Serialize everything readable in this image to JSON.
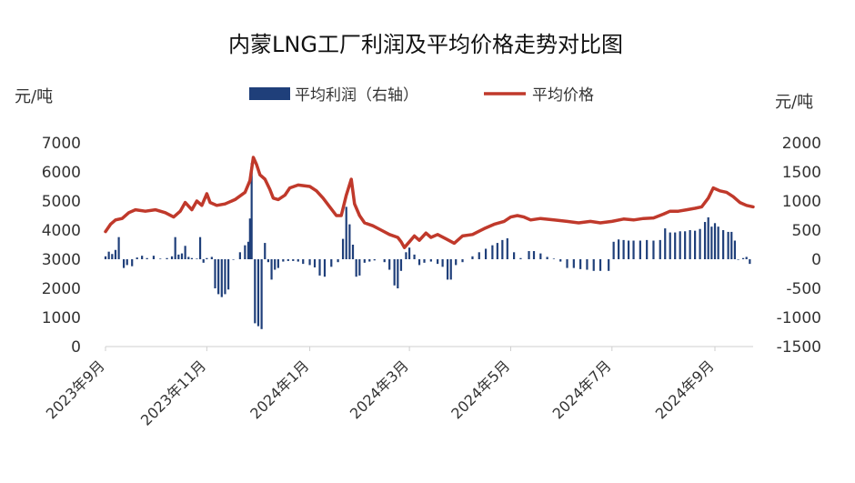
{
  "chart_data": {
    "type": "bar+line",
    "title": "内蒙LNG工厂利润及平均价格走势对比图",
    "y_left_unit": "元/吨",
    "y_right_unit": "元/吨",
    "y_left_lim": [
      0,
      7000
    ],
    "y_right_lim": [
      -1500,
      2000
    ],
    "y_left_ticks": [
      "7000",
      "6000",
      "5000",
      "4000",
      "3000",
      "2000",
      "1000",
      "0"
    ],
    "y_right_ticks": [
      "2000",
      "1500",
      "1000",
      "500",
      "0",
      "-500",
      "-1000",
      "-1500"
    ],
    "x_ticks": [
      "2023年9月",
      "2023年11月",
      "2024年1月",
      "2024年3月",
      "2024年5月",
      "2024年7月",
      "2024年9月"
    ],
    "x_tick_positions": [
      0,
      61,
      123,
      183,
      244,
      305,
      367
    ],
    "x_range": [
      0,
      390
    ],
    "legend": [
      {
        "label": "平均利润（右轴）",
        "type": "bar",
        "color": "#1f3f7a",
        "axis": "right"
      },
      {
        "label": "平均价格",
        "type": "line",
        "color": "#c0392b",
        "axis": "left"
      }
    ],
    "series": [
      {
        "name": "平均价格",
        "type": "line",
        "axis": "left",
        "color": "#c0392b",
        "points": [
          [
            0,
            3950
          ],
          [
            3,
            4200
          ],
          [
            6,
            4350
          ],
          [
            10,
            4400
          ],
          [
            14,
            4600
          ],
          [
            18,
            4700
          ],
          [
            24,
            4650
          ],
          [
            30,
            4700
          ],
          [
            36,
            4600
          ],
          [
            41,
            4450
          ],
          [
            45,
            4650
          ],
          [
            48,
            4950
          ],
          [
            52,
            4700
          ],
          [
            55,
            5000
          ],
          [
            58,
            4850
          ],
          [
            61,
            5250
          ],
          [
            63,
            4950
          ],
          [
            67,
            4850
          ],
          [
            72,
            4900
          ],
          [
            78,
            5050
          ],
          [
            84,
            5300
          ],
          [
            87,
            5700
          ],
          [
            89,
            6500
          ],
          [
            91,
            6250
          ],
          [
            93,
            5900
          ],
          [
            96,
            5750
          ],
          [
            99,
            5400
          ],
          [
            101,
            5100
          ],
          [
            104,
            5050
          ],
          [
            108,
            5200
          ],
          [
            111,
            5450
          ],
          [
            116,
            5550
          ],
          [
            123,
            5500
          ],
          [
            127,
            5350
          ],
          [
            131,
            5100
          ],
          [
            135,
            4800
          ],
          [
            139,
            4500
          ],
          [
            142,
            4500
          ],
          [
            145,
            5200
          ],
          [
            148,
            5750
          ],
          [
            150,
            4900
          ],
          [
            153,
            4500
          ],
          [
            156,
            4250
          ],
          [
            161,
            4150
          ],
          [
            166,
            4000
          ],
          [
            171,
            3850
          ],
          [
            176,
            3750
          ],
          [
            178,
            3600
          ],
          [
            180,
            3400
          ],
          [
            183,
            3600
          ],
          [
            186,
            3800
          ],
          [
            189,
            3650
          ],
          [
            193,
            3900
          ],
          [
            196,
            3750
          ],
          [
            200,
            3850
          ],
          [
            205,
            3700
          ],
          [
            210,
            3550
          ],
          [
            215,
            3800
          ],
          [
            221,
            3850
          ],
          [
            228,
            4050
          ],
          [
            234,
            4200
          ],
          [
            240,
            4300
          ],
          [
            244,
            4450
          ],
          [
            248,
            4500
          ],
          [
            252,
            4450
          ],
          [
            256,
            4350
          ],
          [
            262,
            4400
          ],
          [
            270,
            4350
          ],
          [
            278,
            4300
          ],
          [
            285,
            4250
          ],
          [
            292,
            4300
          ],
          [
            298,
            4250
          ],
          [
            305,
            4300
          ],
          [
            312,
            4380
          ],
          [
            318,
            4350
          ],
          [
            324,
            4400
          ],
          [
            330,
            4420
          ],
          [
            336,
            4550
          ],
          [
            340,
            4650
          ],
          [
            345,
            4650
          ],
          [
            350,
            4700
          ],
          [
            355,
            4750
          ],
          [
            359,
            4800
          ],
          [
            363,
            5100
          ],
          [
            366,
            5450
          ],
          [
            370,
            5350
          ],
          [
            374,
            5300
          ],
          [
            378,
            5150
          ],
          [
            382,
            4950
          ],
          [
            386,
            4850
          ],
          [
            390,
            4800
          ]
        ]
      },
      {
        "name": "平均利润",
        "type": "bar",
        "axis": "right",
        "color": "#1f3f7a",
        "points": [
          [
            0,
            50
          ],
          [
            2,
            130
          ],
          [
            4,
            90
          ],
          [
            6,
            160
          ],
          [
            8,
            380
          ],
          [
            11,
            -150
          ],
          [
            13,
            -100
          ],
          [
            16,
            -120
          ],
          [
            19,
            30
          ],
          [
            22,
            60
          ],
          [
            25,
            20
          ],
          [
            29,
            60
          ],
          [
            33,
            10
          ],
          [
            37,
            20
          ],
          [
            40,
            50
          ],
          [
            42,
            380
          ],
          [
            44,
            80
          ],
          [
            46,
            100
          ],
          [
            48,
            230
          ],
          [
            50,
            40
          ],
          [
            52,
            20
          ],
          [
            55,
            10
          ],
          [
            57,
            380
          ],
          [
            59,
            -60
          ],
          [
            61,
            20
          ],
          [
            64,
            40
          ],
          [
            66,
            -500
          ],
          [
            68,
            -600
          ],
          [
            70,
            -650
          ],
          [
            72,
            -600
          ],
          [
            74,
            -520
          ],
          [
            77,
            0
          ],
          [
            81,
            120
          ],
          [
            84,
            240
          ],
          [
            86,
            300
          ],
          [
            87,
            700
          ],
          [
            88,
            1650
          ],
          [
            90,
            -1100
          ],
          [
            92,
            -1150
          ],
          [
            94,
            -1200
          ],
          [
            96,
            280
          ],
          [
            98,
            -50
          ],
          [
            100,
            -350
          ],
          [
            102,
            -180
          ],
          [
            104,
            -150
          ],
          [
            107,
            -40
          ],
          [
            110,
            -30
          ],
          [
            113,
            -30
          ],
          [
            116,
            -40
          ],
          [
            119,
            -80
          ],
          [
            123,
            -100
          ],
          [
            126,
            -140
          ],
          [
            129,
            -280
          ],
          [
            132,
            -300
          ],
          [
            136,
            -130
          ],
          [
            140,
            -50
          ],
          [
            143,
            350
          ],
          [
            145,
            900
          ],
          [
            147,
            600
          ],
          [
            149,
            250
          ],
          [
            151,
            -300
          ],
          [
            153,
            -280
          ],
          [
            156,
            -60
          ],
          [
            159,
            -40
          ],
          [
            162,
            -20
          ],
          [
            168,
            -50
          ],
          [
            171,
            -180
          ],
          [
            174,
            -450
          ],
          [
            176,
            -500
          ],
          [
            178,
            -200
          ],
          [
            181,
            120
          ],
          [
            183,
            200
          ],
          [
            186,
            80
          ],
          [
            189,
            -100
          ],
          [
            192,
            -60
          ],
          [
            196,
            -40
          ],
          [
            200,
            -80
          ],
          [
            203,
            -130
          ],
          [
            206,
            -350
          ],
          [
            208,
            -350
          ],
          [
            211,
            -100
          ],
          [
            215,
            -50
          ],
          [
            221,
            50
          ],
          [
            225,
            120
          ],
          [
            229,
            180
          ],
          [
            233,
            240
          ],
          [
            236,
            280
          ],
          [
            239,
            330
          ],
          [
            242,
            360
          ],
          [
            246,
            120
          ],
          [
            250,
            20
          ],
          [
            255,
            140
          ],
          [
            258,
            140
          ],
          [
            262,
            100
          ],
          [
            266,
            40
          ],
          [
            270,
            10
          ],
          [
            274,
            -40
          ],
          [
            278,
            -150
          ],
          [
            282,
            -150
          ],
          [
            286,
            -170
          ],
          [
            290,
            -180
          ],
          [
            294,
            -200
          ],
          [
            298,
            -200
          ],
          [
            303,
            -200
          ],
          [
            306,
            300
          ],
          [
            309,
            340
          ],
          [
            312,
            330
          ],
          [
            315,
            320
          ],
          [
            318,
            320
          ],
          [
            322,
            320
          ],
          [
            326,
            330
          ],
          [
            330,
            320
          ],
          [
            334,
            330
          ],
          [
            337,
            530
          ],
          [
            340,
            460
          ],
          [
            343,
            460
          ],
          [
            346,
            480
          ],
          [
            349,
            480
          ],
          [
            352,
            500
          ],
          [
            355,
            490
          ],
          [
            358,
            520
          ],
          [
            361,
            640
          ],
          [
            363,
            720
          ],
          [
            365,
            560
          ],
          [
            367,
            620
          ],
          [
            369,
            560
          ],
          [
            372,
            500
          ],
          [
            375,
            470
          ],
          [
            377,
            470
          ],
          [
            379,
            320
          ],
          [
            381,
            0
          ],
          [
            384,
            20
          ],
          [
            386,
            40
          ],
          [
            388,
            -80
          ]
        ]
      }
    ],
    "grid": false
  }
}
